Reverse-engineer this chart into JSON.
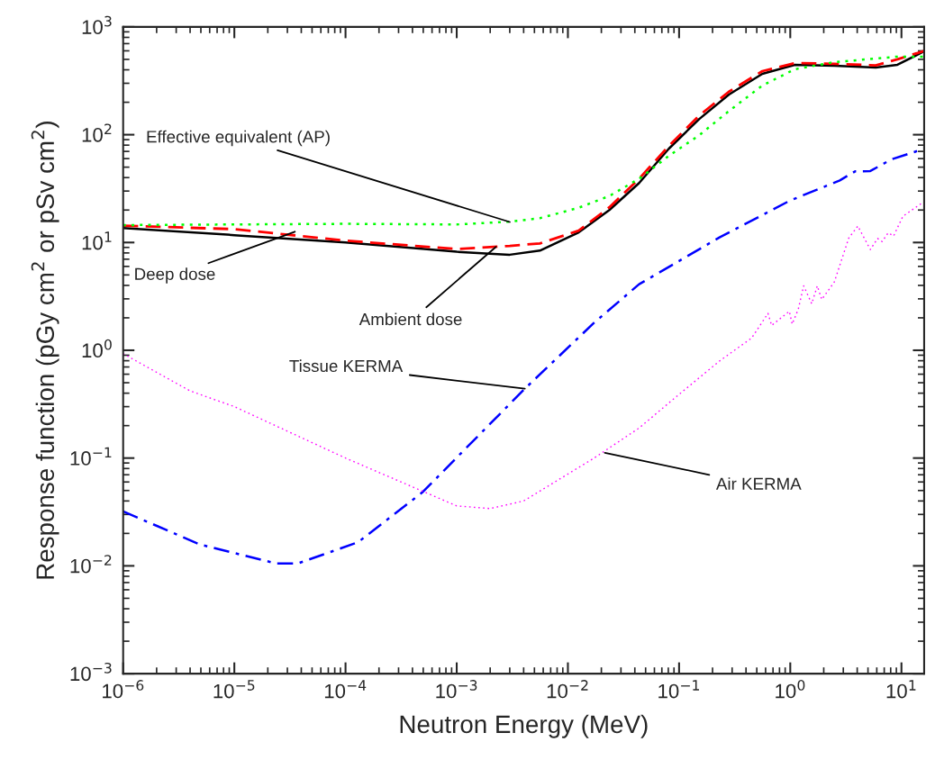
{
  "chart_data": {
    "type": "line",
    "xlabel": "Neutron Energy (MeV)",
    "ylabel": "Response function (pGy cm$^{2}$ or pSv cm$^{2}$)",
    "log": "xy",
    "grid": false,
    "legend": false,
    "xlim": [
      1e-06,
      16
    ],
    "ylim": [
      0.001,
      1000
    ],
    "xticks": [
      {
        "value": 1e-06,
        "label": "10$^{−6}$"
      },
      {
        "value": 1e-05,
        "label": "10$^{−5}$"
      },
      {
        "value": 0.0001,
        "label": "10$^{−4}$"
      },
      {
        "value": 0.001,
        "label": "10$^{−3}$"
      },
      {
        "value": 0.01,
        "label": "10$^{−2}$"
      },
      {
        "value": 0.1,
        "label": "10$^{−1}$"
      },
      {
        "value": 1,
        "label": "10$^{0}$"
      },
      {
        "value": 10,
        "label": "10$^{1}$"
      }
    ],
    "yticks": [
      {
        "value": 0.001,
        "label": "10$^{−3}$"
      },
      {
        "value": 0.01,
        "label": "10$^{−2}$"
      },
      {
        "value": 0.1,
        "label": "10$^{−1}$"
      },
      {
        "value": 1,
        "label": "10$^{0}$"
      },
      {
        "value": 10,
        "label": "10$^{1}$"
      },
      {
        "value": 100,
        "label": "10$^{2}$"
      },
      {
        "value": 1000,
        "label": "10$^{3}$"
      }
    ],
    "series": [
      {
        "color": "#000000",
        "line_style": "solid",
        "x": [
          1e-06,
          1e-05,
          0.0001,
          0.001,
          0.003,
          0.0056,
          0.0125,
          0.0236,
          0.0437,
          0.0807,
          0.152,
          0.281,
          0.561,
          1.1,
          2.49,
          5.87,
          9.2,
          16
        ],
        "values": [
          13.6,
          11.7,
          10,
          8.2,
          7.7,
          8.4,
          12.4,
          20,
          35.6,
          74,
          140,
          236,
          367,
          445,
          437,
          420,
          445,
          594
        ]
      },
      {
        "color": "#ff0000",
        "line_style": "dashed",
        "x": [
          1e-06,
          1e-05,
          0.0001,
          0.001,
          0.003,
          0.0056,
          0.0125,
          0.0236,
          0.0437,
          0.0807,
          0.152,
          0.281,
          0.561,
          1.1,
          2.49,
          5.87,
          9.2,
          16
        ],
        "values": [
          14.3,
          13.3,
          10.4,
          8.7,
          9.3,
          9.8,
          12.9,
          21.2,
          39,
          78.5,
          151,
          251,
          389,
          462,
          455,
          440,
          500,
          599
        ]
      },
      {
        "color": "#00ff00",
        "line_style": "dotted",
        "x": [
          1e-06,
          1e-05,
          0.0001,
          0.001,
          0.003,
          0.0056,
          0.0125,
          0.0236,
          0.0437,
          0.0807,
          0.152,
          0.281,
          0.561,
          1.1,
          2.49,
          5.87,
          9.2,
          16
        ],
        "values": [
          14.5,
          14.7,
          14.9,
          14.7,
          15.6,
          16.8,
          21,
          27,
          39,
          63.5,
          99,
          166,
          286,
          405,
          471,
          509,
          530,
          530
        ]
      },
      {
        "color": "#0000ff",
        "line_style": "dashdot",
        "x": [
          1e-06,
          4.9e-06,
          2.4e-05,
          3.7e-05,
          0.00013,
          0.00049,
          0.0041,
          0.0172,
          0.0437,
          0.233,
          0.98,
          2.79,
          3.83,
          5.25,
          8.07,
          16
        ],
        "values": [
          0.032,
          0.0158,
          0.0105,
          0.0105,
          0.0166,
          0.048,
          0.44,
          1.8,
          4.1,
          11.2,
          24.3,
          37.7,
          45.7,
          46,
          58.9,
          74
        ]
      },
      {
        "color": "#ff00ff",
        "line_style": "dotted",
        "x": [
          1e-06,
          4e-06,
          1e-05,
          0.0001,
          0.001,
          0.002,
          0.004,
          0.0172,
          0.0437,
          0.1,
          0.233,
          0.45,
          0.63,
          0.68,
          0.98,
          1.04,
          1.18,
          1.32,
          1.56,
          1.75,
          1.92,
          2.49,
          3.36,
          4.05,
          5.25,
          6.1,
          6.7,
          7.6,
          8.5,
          10.3,
          16
        ],
        "values": [
          0.93,
          0.42,
          0.3,
          0.1,
          0.036,
          0.034,
          0.04,
          0.1,
          0.19,
          0.39,
          0.8,
          1.3,
          2.2,
          1.7,
          2.3,
          1.75,
          2.4,
          3.96,
          2.7,
          3.96,
          2.96,
          4.3,
          11,
          14.2,
          8.6,
          10.9,
          10.2,
          12.3,
          11.5,
          17.5,
          24
        ]
      }
    ],
    "annotations": [
      {
        "text": "Effective equivalent (AP)",
        "x": 0.003,
        "y": 15.5
      },
      {
        "text": "Deep dose",
        "x": 3.5e-05,
        "y": 12.6
      },
      {
        "text": "Ambient dose",
        "x": 0.00225,
        "y": 9.1
      },
      {
        "text": "Tissue KERMA",
        "x": 0.0041,
        "y": 0.44
      },
      {
        "text": "Air KERMA",
        "x": 0.0215,
        "y": 0.112
      }
    ]
  }
}
